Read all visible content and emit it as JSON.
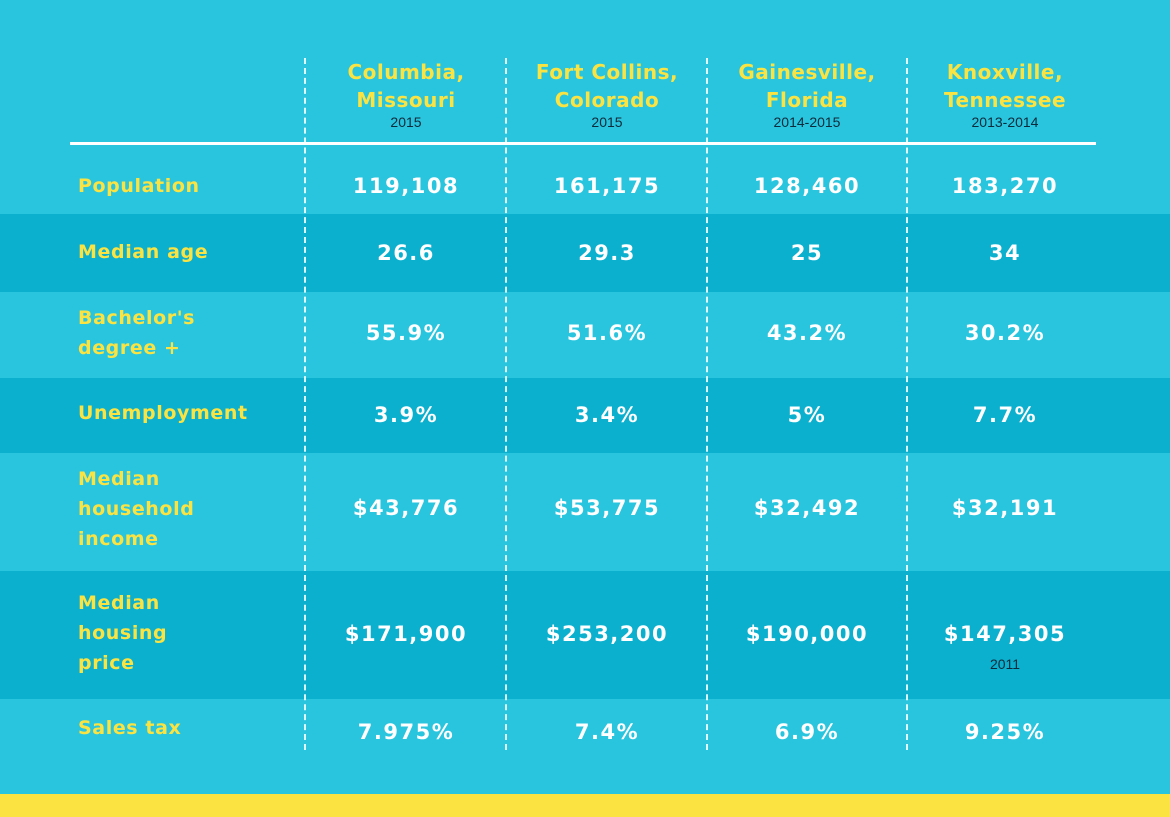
{
  "columns": [
    {
      "city": "Columbia,\nMissouri",
      "year": "2015"
    },
    {
      "city": "Fort Collins,\nColorado",
      "year": "2015"
    },
    {
      "city": "Gainesville,\nFlorida",
      "year": "2014-2015"
    },
    {
      "city": "Knoxville,\nTennessee",
      "year": "2013-2014"
    }
  ],
  "rows": [
    {
      "label": "Population",
      "values": [
        "119,108",
        "161,175",
        "128,460",
        "183,270"
      ]
    },
    {
      "label": "Median age",
      "values": [
        "26.6",
        "29.3",
        "25",
        "34"
      ]
    },
    {
      "label": "Bachelor's\ndegree +",
      "values": [
        "55.9%",
        "51.6%",
        "43.2%",
        "30.2%"
      ]
    },
    {
      "label": "Unemployment",
      "values": [
        "3.9%",
        "3.4%",
        "5%",
        "7.7%"
      ]
    },
    {
      "label": "Median\nhousehold\nincome",
      "values": [
        "$43,776",
        "$53,775",
        "$32,492",
        "$32,191"
      ]
    },
    {
      "label": "Median\nhousing\nprice",
      "values": [
        "$171,900",
        "$253,200",
        "$190,000",
        "$147,305"
      ],
      "note": "2011"
    },
    {
      "label": "Sales tax",
      "values": [
        "7.975%",
        "7.4%",
        "6.9%",
        "9.25%"
      ]
    }
  ],
  "colors": {
    "background": "#29c5df",
    "band": "#0bb0cf",
    "label": "#fbe342",
    "value": "#ffffff",
    "bottom_bar": "#fbe342"
  }
}
